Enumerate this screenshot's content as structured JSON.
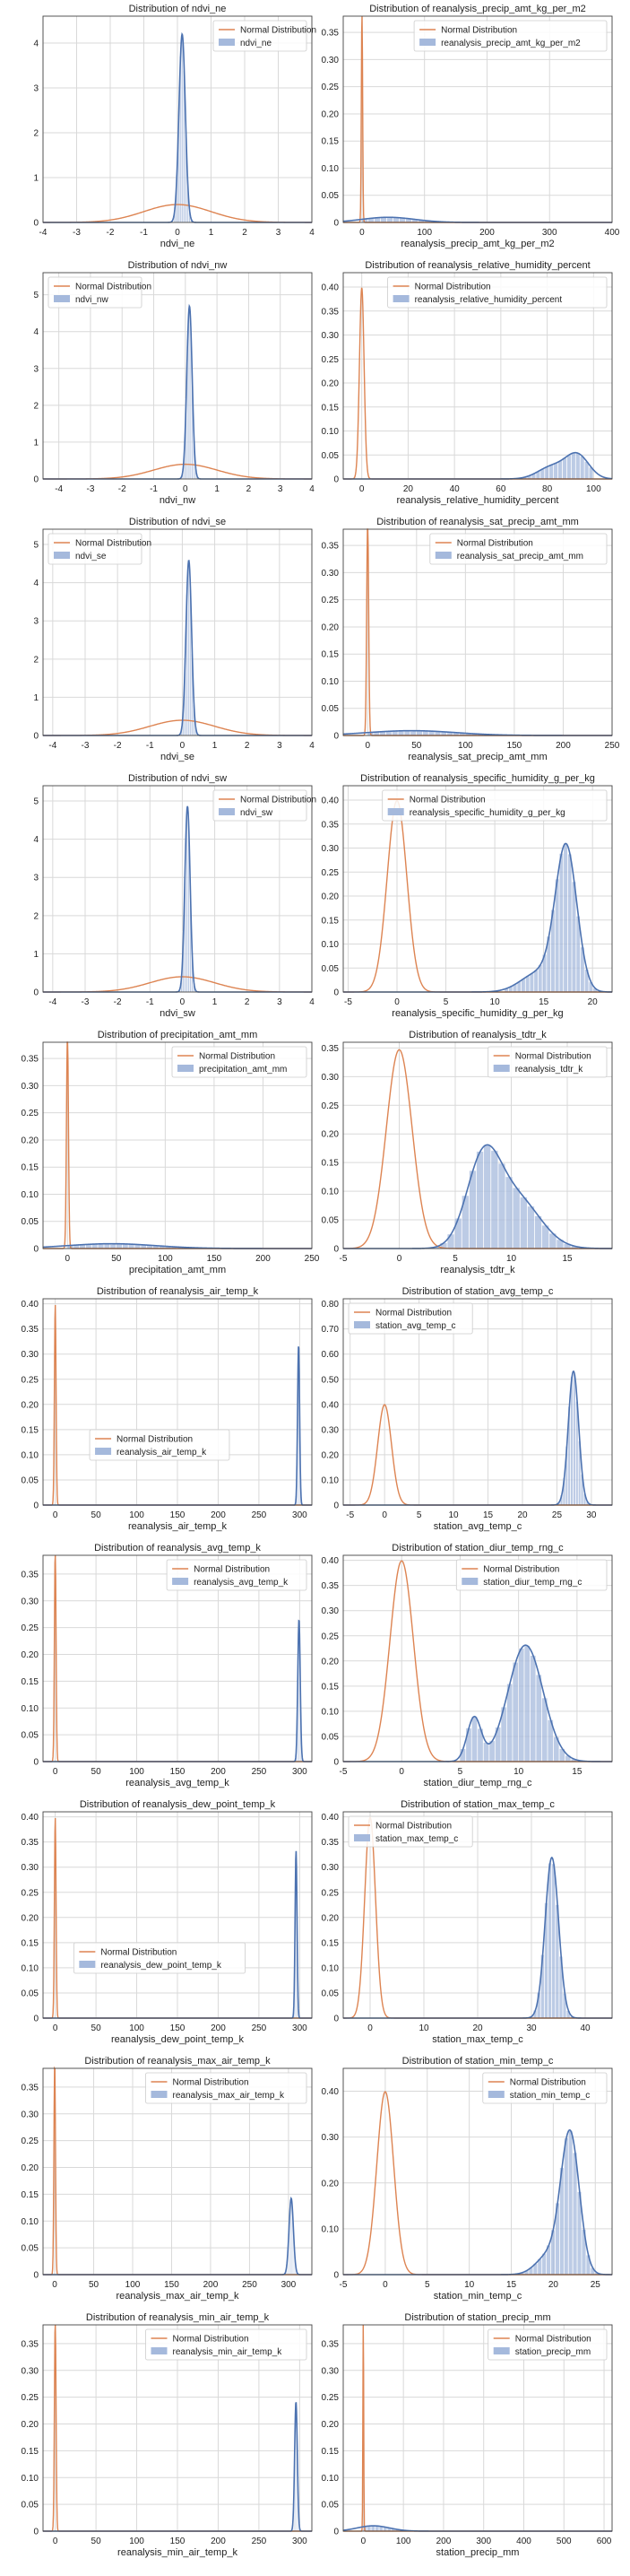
{
  "colors": {
    "normal": "#dd8452",
    "data": "#4c72b0",
    "hist": "#a5b9dc",
    "grid": "#d9d9d9",
    "axis": "#444444"
  },
  "legend_normal": "Normal Distribution",
  "chart_data": [
    {
      "type": "line",
      "title": "Distribution of ndvi_ne",
      "xlabel": "ndvi_ne",
      "series": [
        {
          "name": "Normal Distribution"
        },
        {
          "name": "ndvi_ne"
        }
      ],
      "xlim": [
        -4,
        4
      ],
      "ylim": [
        0,
        4.6
      ],
      "xticks": [
        -4,
        -3,
        -2,
        -1,
        0,
        1,
        2,
        3,
        4
      ],
      "yticks": [
        0,
        1,
        2,
        3,
        4
      ],
      "legend": "top-right",
      "normal": {
        "mu": 0,
        "sigma": 1
      },
      "kde": [
        {
          "mu": 0.14,
          "sigma": 0.095,
          "w": 1
        }
      ],
      "hist": {
        "range": [
          -0.1,
          0.45
        ],
        "bins": 10
      }
    },
    {
      "type": "line",
      "title": "Distribution of reanalysis_precip_amt_kg_per_m2",
      "xlabel": "reanalysis_precip_amt_kg_per_m2",
      "series": [
        {
          "name": "Normal Distribution"
        },
        {
          "name": "reanalysis_precip_amt_kg_per_m2"
        }
      ],
      "xlim": [
        -30,
        400
      ],
      "ylim": [
        0,
        0.38
      ],
      "xticks": [
        0,
        100,
        200,
        300,
        400
      ],
      "yticks": [
        0,
        0.05,
        0.1,
        0.15,
        0.2,
        0.25,
        0.3,
        0.35
      ],
      "legend": "top-right",
      "normal": {
        "mu": 0,
        "sigma": 1
      },
      "kde": [
        {
          "mu": 42,
          "sigma": 42,
          "w": 1
        }
      ],
      "hist": {
        "range": [
          0,
          400
        ],
        "bins": 40
      }
    },
    {
      "type": "line",
      "title": "Distribution of ndvi_nw",
      "xlabel": "ndvi_nw",
      "series": [
        {
          "name": "Normal Distribution"
        },
        {
          "name": "ndvi_nw"
        }
      ],
      "xlim": [
        -4.5,
        4
      ],
      "ylim": [
        0,
        5.6
      ],
      "xticks": [
        -4,
        -3,
        -2,
        -1,
        0,
        1,
        2,
        3,
        4
      ],
      "yticks": [
        0,
        1,
        2,
        3,
        4,
        5
      ],
      "legend": "top-left",
      "normal": {
        "mu": 0,
        "sigma": 1
      },
      "kde": [
        {
          "mu": 0.13,
          "sigma": 0.085,
          "w": 1
        }
      ],
      "hist": {
        "range": [
          -0.1,
          0.4
        ],
        "bins": 10
      }
    },
    {
      "type": "line",
      "title": "Distribution of reanalysis_relative_humidity_percent",
      "xlabel": "reanalysis_relative_humidity_percent",
      "series": [
        {
          "name": "Normal Distribution"
        },
        {
          "name": "reanalysis_relative_humidity_percent"
        }
      ],
      "xlim": [
        -8,
        108
      ],
      "ylim": [
        0,
        0.43
      ],
      "xticks": [
        0,
        20,
        40,
        60,
        80,
        100
      ],
      "yticks": [
        0,
        0.05,
        0.1,
        0.15,
        0.2,
        0.25,
        0.3,
        0.35,
        0.4
      ],
      "legend": "top-right",
      "normal": {
        "mu": 0,
        "sigma": 1
      },
      "kde": [
        {
          "mu": 93,
          "sigma": 5,
          "w": 0.62
        },
        {
          "mu": 82,
          "sigma": 6,
          "w": 0.38
        }
      ],
      "hist": {
        "range": [
          58,
          100
        ],
        "bins": 22
      }
    },
    {
      "type": "line",
      "title": "Distribution of ndvi_se",
      "xlabel": "ndvi_se",
      "series": [
        {
          "name": "Normal Distribution"
        },
        {
          "name": "ndvi_se"
        }
      ],
      "xlim": [
        -4.3,
        4
      ],
      "ylim": [
        0,
        5.4
      ],
      "xticks": [
        -4,
        -3,
        -2,
        -1,
        0,
        1,
        2,
        3,
        4
      ],
      "yticks": [
        0,
        1,
        2,
        3,
        4,
        5
      ],
      "legend": "top-left",
      "normal": {
        "mu": 0,
        "sigma": 1
      },
      "kde": [
        {
          "mu": 0.2,
          "sigma": 0.087,
          "w": 1
        }
      ],
      "hist": {
        "range": [
          -0.05,
          0.5
        ],
        "bins": 10
      }
    },
    {
      "type": "line",
      "title": "Distribution of reanalysis_sat_precip_amt_mm",
      "xlabel": "reanalysis_sat_precip_amt_mm",
      "series": [
        {
          "name": "Normal Distribution"
        },
        {
          "name": "reanalysis_sat_precip_amt_mm"
        }
      ],
      "xlim": [
        -25,
        250
      ],
      "ylim": [
        0,
        0.38
      ],
      "xticks": [
        0,
        50,
        100,
        150,
        200,
        250
      ],
      "yticks": [
        0,
        0.05,
        0.1,
        0.15,
        0.2,
        0.25,
        0.3,
        0.35
      ],
      "legend": "top-right",
      "normal": {
        "mu": 0,
        "sigma": 1
      },
      "kde": [
        {
          "mu": 45,
          "sigma": 45,
          "w": 1
        }
      ],
      "hist": {
        "range": [
          0,
          250
        ],
        "bins": 40
      }
    },
    {
      "type": "line",
      "title": "Distribution of ndvi_sw",
      "xlabel": "ndvi_sw",
      "series": [
        {
          "name": "Normal Distribution"
        },
        {
          "name": "ndvi_sw"
        }
      ],
      "xlim": [
        -4.3,
        4
      ],
      "ylim": [
        0,
        5.4
      ],
      "xticks": [
        -4,
        -3,
        -2,
        -1,
        0,
        1,
        2,
        3,
        4
      ],
      "yticks": [
        0,
        1,
        2,
        3,
        4,
        5
      ],
      "legend": "top-right",
      "normal": {
        "mu": 0,
        "sigma": 1
      },
      "kde": [
        {
          "mu": 0.16,
          "sigma": 0.082,
          "w": 1
        }
      ],
      "hist": {
        "range": [
          -0.1,
          0.45
        ],
        "bins": 10
      }
    },
    {
      "type": "line",
      "title": "Distribution of reanalysis_specific_humidity_g_per_kg",
      "xlabel": "reanalysis_specific_humidity_g_per_kg",
      "series": [
        {
          "name": "Normal Distribution"
        },
        {
          "name": "reanalysis_specific_humidity_g_per_kg"
        }
      ],
      "xlim": [
        -5.5,
        22
      ],
      "ylim": [
        0,
        0.43
      ],
      "xticks": [
        -5,
        0,
        5,
        10,
        15,
        20
      ],
      "yticks": [
        0,
        0.05,
        0.1,
        0.15,
        0.2,
        0.25,
        0.3,
        0.35,
        0.4
      ],
      "legend": "top-right",
      "normal": {
        "mu": 0,
        "sigma": 1
      },
      "kde": [
        {
          "mu": 17.3,
          "sigma": 1.1,
          "w": 0.82
        },
        {
          "mu": 14.5,
          "sigma": 1.8,
          "w": 0.18
        }
      ],
      "hist": {
        "range": [
          11,
          20.5
        ],
        "bins": 22
      }
    },
    {
      "type": "line",
      "title": "Distribution of precipitation_amt_mm",
      "xlabel": "precipitation_amt_mm",
      "series": [
        {
          "name": "Normal Distribution"
        },
        {
          "name": "precipitation_amt_mm"
        }
      ],
      "xlim": [
        -25,
        250
      ],
      "ylim": [
        0,
        0.38
      ],
      "xticks": [
        0,
        50,
        100,
        150,
        200,
        250
      ],
      "yticks": [
        0,
        0.05,
        0.1,
        0.15,
        0.2,
        0.25,
        0.3,
        0.35
      ],
      "legend": "top-right",
      "normal": {
        "mu": 0,
        "sigma": 1
      },
      "kde": [
        {
          "mu": 45,
          "sigma": 45,
          "w": 1
        }
      ],
      "hist": {
        "range": [
          0,
          250
        ],
        "bins": 40
      }
    },
    {
      "type": "line",
      "title": "Distribution of reanalysis_tdtr_k",
      "xlabel": "reanalysis_tdtr_k",
      "series": [
        {
          "name": "Normal Distribution"
        },
        {
          "name": "reanalysis_tdtr_k"
        }
      ],
      "xlim": [
        -5,
        19
      ],
      "ylim": [
        0,
        0.36
      ],
      "xticks": [
        -5,
        0,
        5,
        10,
        15
      ],
      "yticks": [
        0,
        0.05,
        0.1,
        0.15,
        0.2,
        0.25,
        0.3,
        0.35
      ],
      "legend": "top-right",
      "normal": {
        "mu": 0,
        "sigma": 1.15
      },
      "kde": [
        {
          "mu": 7.5,
          "sigma": 1.5,
          "w": 0.55
        },
        {
          "mu": 10.5,
          "sigma": 2.1,
          "w": 0.45
        }
      ],
      "hist": {
        "range": [
          3,
          16
        ],
        "bins": 20
      }
    },
    {
      "type": "line",
      "title": "Distribution of reanalysis_air_temp_k",
      "xlabel": "reanalysis_air_temp_k",
      "series": [
        {
          "name": "Normal Distribution"
        },
        {
          "name": "reanalysis_air_temp_k"
        }
      ],
      "xlim": [
        -15,
        315
      ],
      "ylim": [
        0,
        0.41
      ],
      "xticks": [
        0,
        50,
        100,
        150,
        200,
        250,
        300
      ],
      "yticks": [
        0,
        0.05,
        0.1,
        0.15,
        0.2,
        0.25,
        0.3,
        0.35,
        0.4
      ],
      "legend": "lower-center",
      "normal": {
        "mu": 0,
        "sigma": 1
      },
      "kde": [
        {
          "mu": 298.7,
          "sigma": 1.25,
          "w": 1
        }
      ],
      "hist": {
        "range": [
          294,
          303
        ],
        "bins": 12
      }
    },
    {
      "type": "line",
      "title": "Distribution of station_avg_temp_c",
      "xlabel": "station_avg_temp_c",
      "series": [
        {
          "name": "Normal Distribution"
        },
        {
          "name": "station_avg_temp_c"
        }
      ],
      "xlim": [
        -6,
        33
      ],
      "ylim": [
        0,
        0.82
      ],
      "xticks": [
        -5,
        0,
        5,
        10,
        15,
        20,
        25,
        30
      ],
      "yticks": [
        0,
        0.1,
        0.2,
        0.3,
        0.4,
        0.5,
        0.6,
        0.7,
        0.8
      ],
      "legend": "top-left",
      "normal": {
        "mu": 0,
        "sigma": 1
      },
      "kde": [
        {
          "mu": 27.4,
          "sigma": 0.75,
          "w": 1
        }
      ],
      "hist": {
        "range": [
          24,
          30
        ],
        "bins": 16
      }
    },
    {
      "type": "line",
      "title": "Distribution of reanalysis_avg_temp_k",
      "xlabel": "reanalysis_avg_temp_k",
      "series": [
        {
          "name": "Normal Distribution"
        },
        {
          "name": "reanalysis_avg_temp_k"
        }
      ],
      "xlim": [
        -15,
        315
      ],
      "ylim": [
        0,
        0.385
      ],
      "xticks": [
        0,
        50,
        100,
        150,
        200,
        250,
        300
      ],
      "yticks": [
        0,
        0.05,
        0.1,
        0.15,
        0.2,
        0.25,
        0.3,
        0.35
      ],
      "legend": "top-right",
      "normal": {
        "mu": 0,
        "sigma": 1
      },
      "kde": [
        {
          "mu": 299.2,
          "sigma": 1.5,
          "w": 1
        }
      ],
      "hist": {
        "range": [
          294,
          304
        ],
        "bins": 12
      }
    },
    {
      "type": "line",
      "title": "Distribution of station_diur_temp_rng_c",
      "xlabel": "station_diur_temp_rng_c",
      "series": [
        {
          "name": "Normal Distribution"
        },
        {
          "name": "station_diur_temp_rng_c"
        }
      ],
      "xlim": [
        -5,
        18
      ],
      "ylim": [
        0,
        0.41
      ],
      "xticks": [
        -5,
        0,
        5,
        10,
        15
      ],
      "yticks": [
        0,
        0.05,
        0.1,
        0.15,
        0.2,
        0.25,
        0.3,
        0.35,
        0.4
      ],
      "legend": "top-right",
      "normal": {
        "mu": 0,
        "sigma": 1
      },
      "kde": [
        {
          "mu": 6.2,
          "sigma": 0.6,
          "w": 0.13
        },
        {
          "mu": 10.6,
          "sigma": 1.5,
          "w": 0.87
        }
      ],
      "hist": {
        "range": [
          5,
          15
        ],
        "bins": 20
      }
    },
    {
      "type": "line",
      "title": "Distribution of reanalysis_dew_point_temp_k",
      "xlabel": "reanalysis_dew_point_temp_k",
      "series": [
        {
          "name": "Normal Distribution"
        },
        {
          "name": "reanalysis_dew_point_temp_k"
        }
      ],
      "xlim": [
        -15,
        315
      ],
      "ylim": [
        0,
        0.41
      ],
      "xticks": [
        0,
        50,
        100,
        150,
        200,
        250,
        300
      ],
      "yticks": [
        0,
        0.05,
        0.1,
        0.15,
        0.2,
        0.25,
        0.3,
        0.35,
        0.4
      ],
      "legend": "lower-center",
      "normal": {
        "mu": 0,
        "sigma": 1
      },
      "kde": [
        {
          "mu": 295.6,
          "sigma": 1.2,
          "w": 1
        }
      ],
      "hist": {
        "range": [
          290,
          299
        ],
        "bins": 12
      }
    },
    {
      "type": "line",
      "title": "Distribution of station_max_temp_c",
      "xlabel": "station_max_temp_c",
      "series": [
        {
          "name": "Normal Distribution"
        },
        {
          "name": "station_max_temp_c"
        }
      ],
      "xlim": [
        -5,
        45
      ],
      "ylim": [
        0,
        0.41
      ],
      "xticks": [
        0,
        10,
        20,
        30,
        40
      ],
      "yticks": [
        0,
        0.05,
        0.1,
        0.15,
        0.2,
        0.25,
        0.3,
        0.35,
        0.4
      ],
      "legend": "top-left",
      "normal": {
        "mu": 0,
        "sigma": 1
      },
      "kde": [
        {
          "mu": 33.8,
          "sigma": 1.25,
          "w": 1
        }
      ],
      "hist": {
        "range": [
          29,
          40
        ],
        "bins": 16
      }
    },
    {
      "type": "line",
      "title": "Distribution of reanalysis_max_air_temp_k",
      "xlabel": "reanalysis_max_air_temp_k",
      "series": [
        {
          "name": "Normal Distribution"
        },
        {
          "name": "reanalysis_max_air_temp_k"
        }
      ],
      "xlim": [
        -15,
        330
      ],
      "ylim": [
        0,
        0.385
      ],
      "xticks": [
        0,
        50,
        100,
        150,
        200,
        250,
        300
      ],
      "yticks": [
        0,
        0.05,
        0.1,
        0.15,
        0.2,
        0.25,
        0.3,
        0.35
      ],
      "legend": "top-right",
      "normal": {
        "mu": 0,
        "sigma": 1
      },
      "kde": [
        {
          "mu": 303.5,
          "sigma": 2.8,
          "w": 1
        }
      ],
      "hist": {
        "range": [
          297,
          312
        ],
        "bins": 14
      }
    },
    {
      "type": "line",
      "title": "Distribution of station_min_temp_c",
      "xlabel": "station_min_temp_c",
      "series": [
        {
          "name": "Normal Distribution"
        },
        {
          "name": "station_min_temp_c"
        }
      ],
      "xlim": [
        -5,
        27
      ],
      "ylim": [
        0,
        0.45
      ],
      "xticks": [
        -5,
        0,
        5,
        10,
        15,
        20,
        25
      ],
      "yticks": [
        0,
        0.1,
        0.2,
        0.3,
        0.4
      ],
      "legend": "top-right",
      "normal": {
        "mu": 0,
        "sigma": 1
      },
      "kde": [
        {
          "mu": 22,
          "sigma": 1.1,
          "w": 0.84
        },
        {
          "mu": 19.5,
          "sigma": 1.5,
          "w": 0.16
        }
      ],
      "hist": {
        "range": [
          15,
          25.5
        ],
        "bins": 20
      }
    },
    {
      "type": "line",
      "title": "Distribution of reanalysis_min_air_temp_k",
      "xlabel": "reanalysis_min_air_temp_k",
      "series": [
        {
          "name": "Normal Distribution"
        },
        {
          "name": "reanalysis_min_air_temp_k"
        }
      ],
      "xlim": [
        -15,
        315
      ],
      "ylim": [
        0,
        0.385
      ],
      "xticks": [
        0,
        50,
        100,
        150,
        200,
        250,
        300
      ],
      "yticks": [
        0,
        0.05,
        0.1,
        0.15,
        0.2,
        0.25,
        0.3,
        0.35
      ],
      "legend": "top-right",
      "normal": {
        "mu": 0,
        "sigma": 1
      },
      "kde": [
        {
          "mu": 295.5,
          "sigma": 1.65,
          "w": 1
        }
      ],
      "hist": {
        "range": [
          289,
          301
        ],
        "bins": 12
      }
    },
    {
      "type": "line",
      "title": "Distribution of station_precip_mm",
      "xlabel": "station_precip_mm",
      "series": [
        {
          "name": "Normal Distribution"
        },
        {
          "name": "station_precip_mm"
        }
      ],
      "xlim": [
        -50,
        620
      ],
      "ylim": [
        0,
        0.385
      ],
      "xticks": [
        0,
        100,
        200,
        300,
        400,
        500,
        600
      ],
      "yticks": [
        0,
        0.05,
        0.1,
        0.15,
        0.2,
        0.25,
        0.3,
        0.35
      ],
      "legend": "top-right",
      "normal": {
        "mu": 0,
        "sigma": 1
      },
      "kde": [
        {
          "mu": 25,
          "sigma": 40,
          "w": 1
        }
      ],
      "hist": {
        "range": [
          0,
          600
        ],
        "bins": 60
      }
    }
  ]
}
